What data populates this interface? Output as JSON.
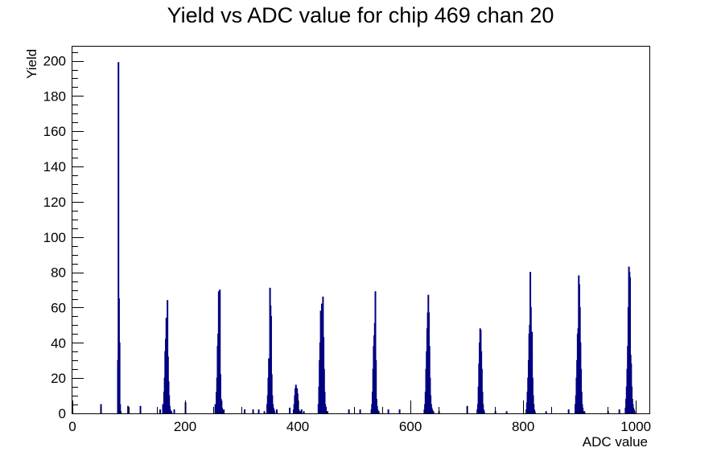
{
  "chart_data": {
    "type": "bar",
    "title": "Yield vs ADC value for chip 469 chan 20",
    "xlabel": "ADC value",
    "ylabel": "Yield",
    "xlim": [
      0,
      1024
    ],
    "ylim": [
      0,
      208
    ],
    "grid": false,
    "legend": "none",
    "bar_color": "#000080",
    "x_ticks": [
      0,
      200,
      400,
      600,
      800,
      1000
    ],
    "y_ticks": [
      0,
      20,
      40,
      60,
      80,
      100,
      120,
      140,
      160,
      180,
      200
    ],
    "series": [
      {
        "x": [
          50,
          80,
          81,
          82,
          83,
          84,
          85,
          98,
          120,
          155,
          160,
          162,
          163,
          164,
          165,
          166,
          167,
          168,
          169,
          170,
          171,
          172,
          173,
          174,
          175,
          180,
          200,
          253,
          255,
          256,
          257,
          258,
          259,
          260,
          261,
          262,
          263,
          264,
          265,
          266,
          268,
          305,
          320,
          330,
          340,
          345,
          346,
          347,
          348,
          349,
          350,
          351,
          352,
          353,
          354,
          355,
          356,
          357,
          358,
          362,
          385,
          392,
          393,
          394,
          395,
          396,
          397,
          398,
          399,
          400,
          401,
          402,
          403,
          404,
          405,
          406,
          410,
          436,
          437,
          438,
          439,
          440,
          441,
          442,
          443,
          444,
          445,
          446,
          447,
          448,
          449,
          450,
          452,
          490,
          510,
          530,
          531,
          532,
          533,
          534,
          535,
          536,
          537,
          538,
          539,
          540,
          541,
          542,
          543,
          560,
          580,
          624,
          625,
          626,
          627,
          628,
          629,
          630,
          631,
          632,
          633,
          634,
          635,
          636,
          637,
          638,
          640,
          650,
          700,
          718,
          719,
          720,
          721,
          722,
          723,
          724,
          725,
          726,
          727,
          728,
          729,
          730,
          750,
          770,
          805,
          806,
          807,
          808,
          809,
          810,
          811,
          812,
          813,
          814,
          815,
          816,
          817,
          818,
          819,
          820,
          840,
          880,
          892,
          893,
          894,
          895,
          896,
          897,
          898,
          899,
          900,
          901,
          902,
          903,
          904,
          905,
          906,
          908,
          950,
          970,
          981,
          982,
          983,
          984,
          985,
          986,
          987,
          988,
          989,
          990,
          991,
          992,
          993,
          994,
          995,
          996,
          997
        ],
        "values": [
          5,
          30,
          199,
          65,
          40,
          5,
          1,
          4,
          4,
          2,
          5,
          12,
          20,
          35,
          42,
          54,
          40,
          64,
          32,
          18,
          10,
          4,
          2,
          1,
          1,
          2,
          6,
          5,
          12,
          20,
          38,
          45,
          69,
          30,
          70,
          22,
          8,
          7,
          3,
          1,
          2,
          2,
          2,
          2,
          1,
          5,
          10,
          20,
          31,
          27,
          71,
          61,
          55,
          22,
          10,
          5,
          3,
          2,
          1,
          2,
          3,
          2,
          5,
          10,
          14,
          16,
          9,
          14,
          11,
          7,
          2,
          1,
          1,
          1,
          1,
          2,
          1,
          5,
          15,
          30,
          40,
          58,
          51,
          62,
          22,
          66,
          43,
          25,
          12,
          5,
          2,
          1,
          1,
          2,
          2,
          2,
          5,
          12,
          25,
          38,
          44,
          51,
          69,
          30,
          8,
          4,
          2,
          1,
          1,
          2,
          2,
          2,
          5,
          12,
          25,
          35,
          48,
          57,
          67,
          57,
          38,
          20,
          10,
          5,
          3,
          2,
          1,
          1,
          4,
          2,
          5,
          15,
          28,
          40,
          48,
          47,
          35,
          25,
          12,
          5,
          2,
          1,
          1,
          1,
          2,
          6,
          12,
          20,
          30,
          45,
          50,
          80,
          60,
          35,
          46,
          20,
          10,
          5,
          2,
          1,
          1,
          2,
          5,
          10,
          20,
          30,
          45,
          48,
          78,
          73,
          60,
          40,
          25,
          12,
          5,
          3,
          1,
          1,
          1,
          2,
          3,
          8,
          15,
          25,
          38,
          60,
          83,
          80,
          77,
          33,
          28,
          15,
          8,
          5,
          3,
          2,
          1
        ]
      }
    ]
  }
}
